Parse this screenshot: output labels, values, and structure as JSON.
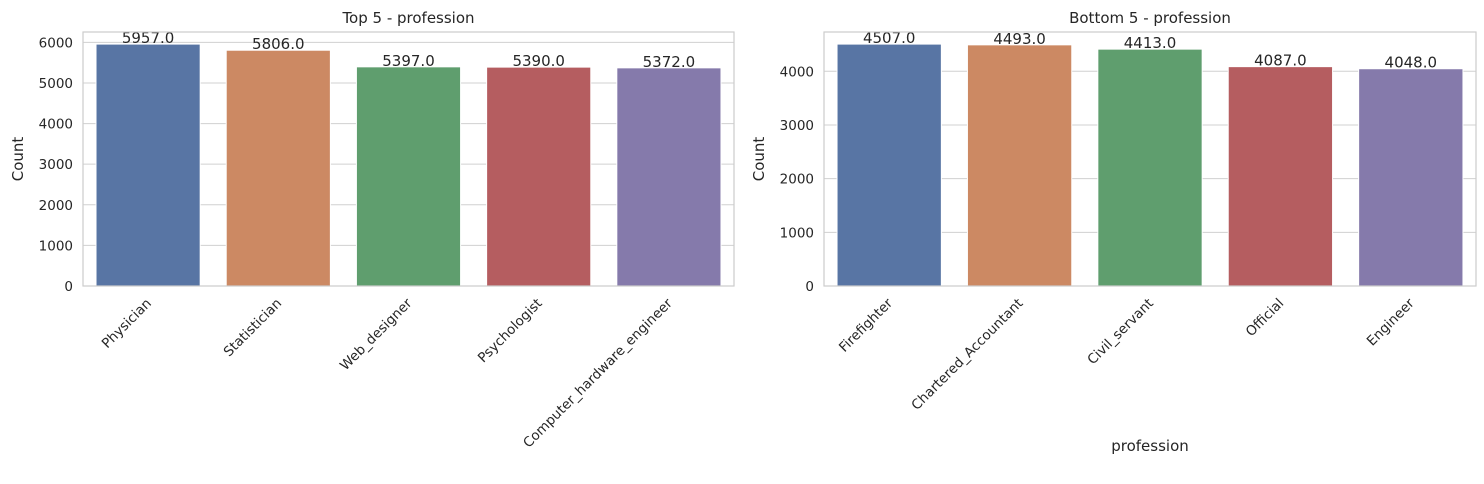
{
  "chart_data": [
    {
      "type": "bar",
      "title": "Top 5  - profession",
      "xlabel": "",
      "ylabel": "Count",
      "categories": [
        "Physician",
        "Statistician",
        "Web_designer",
        "Psychologist",
        "Computer_hardware_engineer"
      ],
      "values": [
        5957.0,
        5806.0,
        5397.0,
        5390.0,
        5372.0
      ],
      "value_labels": [
        "5957.0",
        "5806.0",
        "5397.0",
        "5390.0",
        "5372.0"
      ],
      "colors": [
        "#5875a4",
        "#cc8963",
        "#5f9e6e",
        "#b55d60",
        "#857aab"
      ],
      "yticks": [
        0,
        1000,
        2000,
        3000,
        4000,
        5000,
        6000
      ],
      "ylim": [
        0,
        6254.85
      ],
      "grid": true
    },
    {
      "type": "bar",
      "title": "Bottom 5  - profession",
      "xlabel": "profession",
      "ylabel": "Count",
      "categories": [
        "Firefighter",
        "Chartered_Accountant",
        "Civil_servant",
        "Official",
        "Engineer"
      ],
      "values": [
        4507.0,
        4493.0,
        4413.0,
        4087.0,
        4048.0
      ],
      "value_labels": [
        "4507.0",
        "4493.0",
        "4413.0",
        "4087.0",
        "4048.0"
      ],
      "colors": [
        "#5875a4",
        "#cc8963",
        "#5f9e6e",
        "#b55d60",
        "#857aab"
      ],
      "yticks": [
        0,
        1000,
        2000,
        3000,
        4000
      ],
      "ylim": [
        0,
        4732.35
      ],
      "grid": true
    }
  ]
}
